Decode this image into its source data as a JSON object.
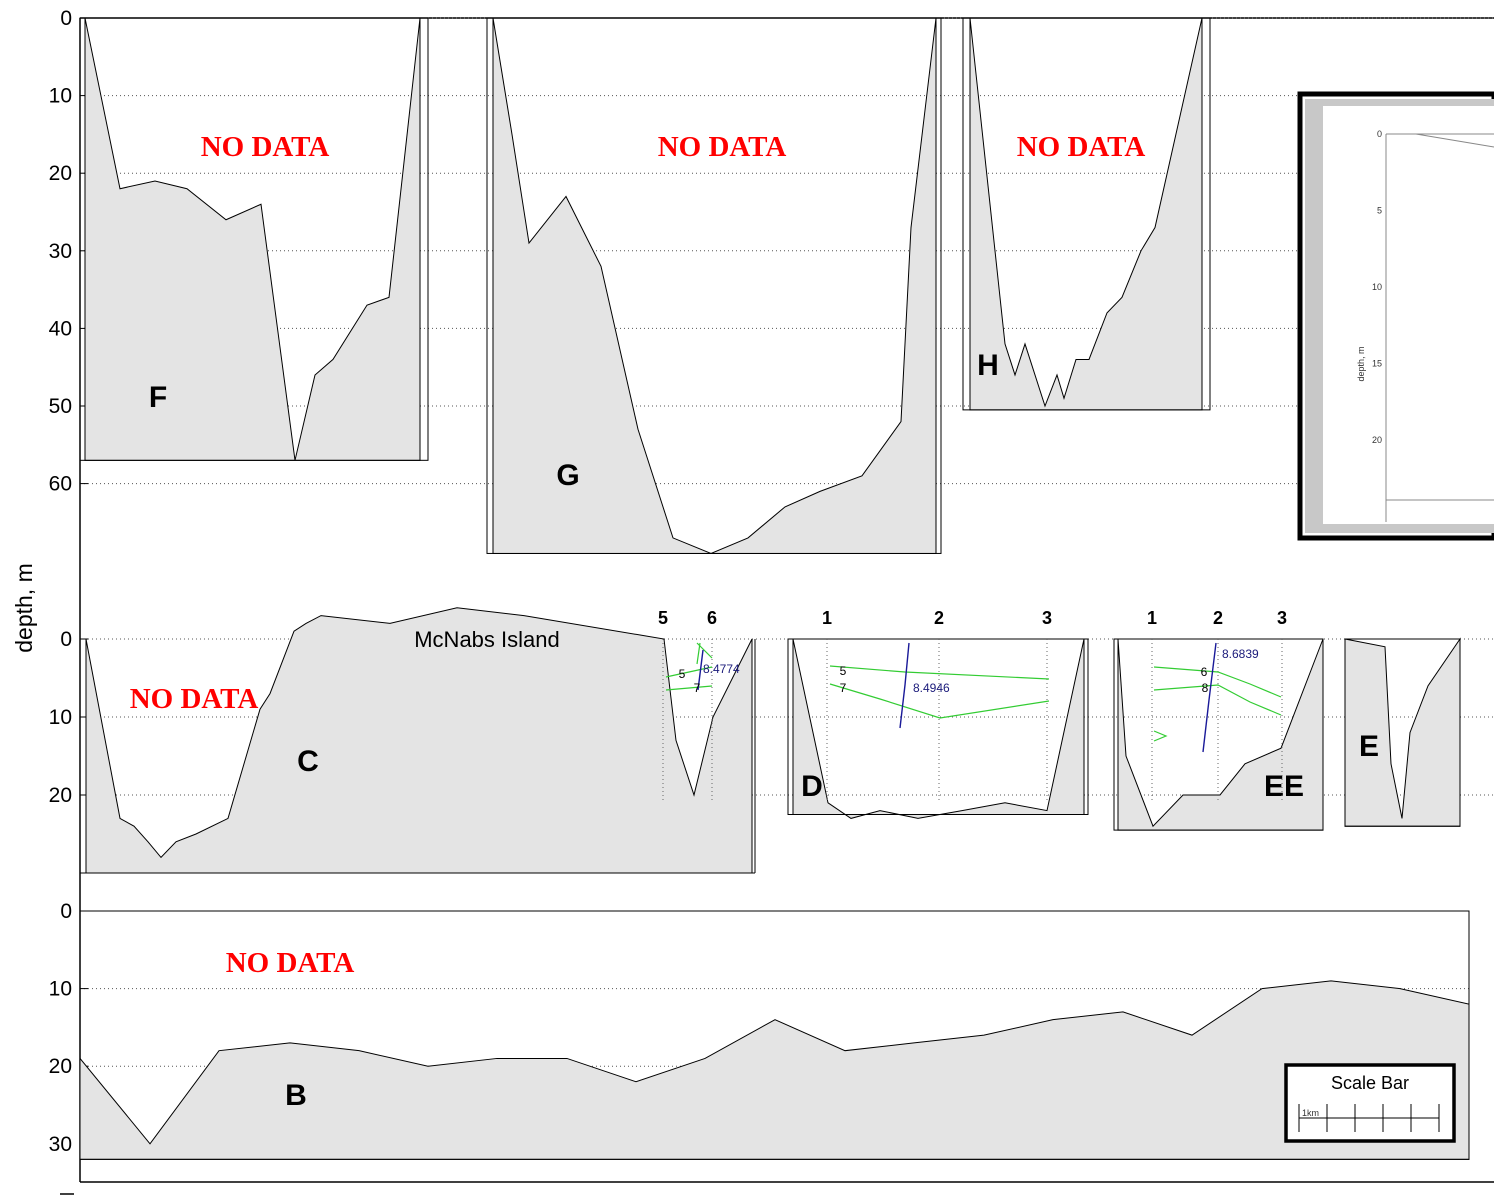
{
  "chart_data": {
    "type": "area",
    "ylabel": "depth, m",
    "y_axis_groups": [
      {
        "ticks": [
          0,
          10,
          20,
          30,
          40,
          50,
          60
        ],
        "ylim": [
          0,
          70
        ],
        "inverted": true
      },
      {
        "ticks": [
          0,
          10,
          20
        ],
        "ylim": [
          -3,
          30
        ],
        "inverted": true
      },
      {
        "ticks": [
          0,
          10,
          20,
          30
        ],
        "ylim": [
          0,
          32
        ],
        "inverted": true
      }
    ],
    "grid": true,
    "sections": [
      {
        "label": "F",
        "note": "NO DATA",
        "stations": [],
        "annotation": "",
        "depth_profile": [
          0,
          22,
          21,
          22,
          26,
          24,
          57,
          46,
          44,
          37,
          36,
          0
        ]
      },
      {
        "label": "G",
        "note": "NO DATA",
        "stations": [],
        "annotation": "",
        "depth_profile": [
          0,
          15,
          29,
          23,
          32,
          53,
          67,
          69,
          67,
          63,
          61,
          59,
          52,
          27,
          0
        ]
      },
      {
        "label": "H",
        "note": "NO DATA",
        "stations": [],
        "annotation": "",
        "depth_profile": [
          0,
          42,
          46,
          42,
          50,
          46,
          49,
          44,
          44,
          38,
          36,
          30,
          27,
          0
        ]
      },
      {
        "label": "C",
        "note": "NO DATA",
        "stations": [
          "5",
          "6"
        ],
        "annotation": "McNabs Island",
        "depth_profile": [
          0,
          23,
          24,
          26,
          28,
          26,
          25,
          23,
          9,
          7,
          -1,
          -2,
          -3,
          -2,
          -4,
          -3,
          0,
          13,
          20,
          10,
          0
        ]
      },
      {
        "label": "D",
        "note": "",
        "stations": [
          "1",
          "2",
          "3"
        ],
        "annotation": "",
        "depth_profile": [
          0,
          21,
          23,
          22,
          23,
          22,
          21,
          22,
          0
        ]
      },
      {
        "label": "EE",
        "note": "",
        "stations": [
          "1",
          "2",
          "3"
        ],
        "annotation": "",
        "depth_profile": [
          0,
          15,
          24,
          20,
          20,
          16,
          14,
          0
        ]
      },
      {
        "label": "E",
        "note": "",
        "stations": [],
        "annotation": "",
        "depth_profile": [
          0,
          1,
          16,
          23,
          12,
          6,
          0
        ]
      },
      {
        "label": "B",
        "note": "NO DATA",
        "stations": [],
        "annotation": "",
        "depth_profile": [
          19,
          30,
          18,
          17,
          18,
          20,
          19,
          19,
          22,
          19,
          14,
          18,
          17,
          16,
          14,
          13,
          16,
          10,
          9,
          10,
          12
        ]
      }
    ],
    "contours": [
      {
        "section": "C",
        "levels": [
          "5",
          "7"
        ],
        "value_label": "8.4774"
      },
      {
        "section": "D",
        "levels": [
          "5",
          "7"
        ],
        "value_label": "8.4946"
      },
      {
        "section": "EE",
        "levels": [
          "6",
          "8"
        ],
        "value_label": "8.6839"
      }
    ],
    "inset": {
      "ylabel": "depth, m",
      "ticks": [
        "0",
        "5",
        "10",
        "15",
        "20"
      ]
    },
    "scale_bar": {
      "title": "Scale Bar",
      "unit": "1km"
    }
  },
  "colors": {
    "terrain": "#e4e4e4",
    "no_data": "#ff0000",
    "contour": "#33cc33",
    "salinity": "#1a1a99"
  }
}
